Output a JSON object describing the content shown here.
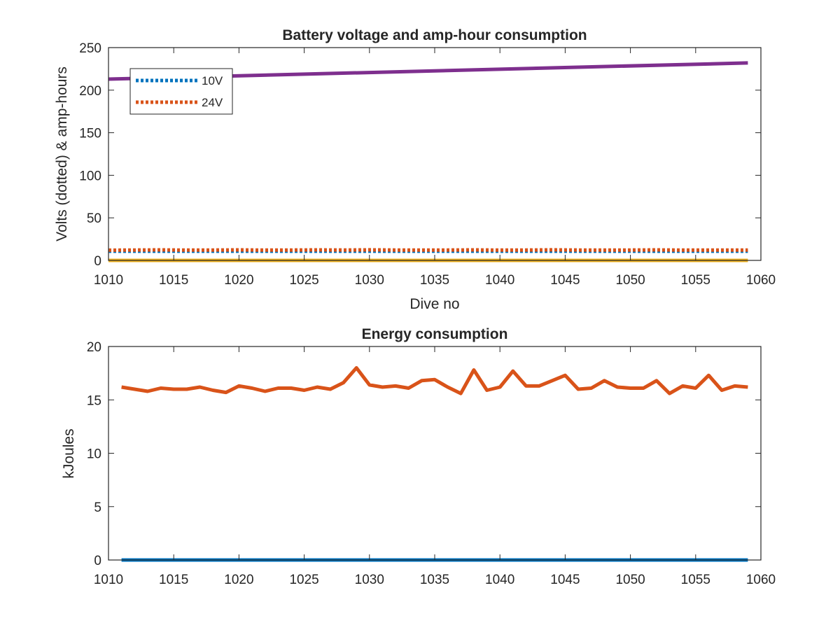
{
  "chart_data": [
    {
      "type": "line",
      "title": "Battery voltage and amp-hour consumption",
      "xlabel": "Dive no",
      "ylabel": "Volts (dotted) & amp-hours",
      "xlim": [
        1010,
        1060
      ],
      "ylim": [
        0,
        250
      ],
      "xticks": [
        1010,
        1015,
        1020,
        1025,
        1030,
        1035,
        1040,
        1045,
        1050,
        1055,
        1060
      ],
      "yticks": [
        0,
        50,
        100,
        150,
        200,
        250
      ],
      "grid": false,
      "legend": {
        "placement": "top-left",
        "entries": [
          "10V",
          "24V"
        ]
      },
      "series": [
        {
          "name": "10V",
          "style": "dotted",
          "color": "#0072BD",
          "x": [
            1010,
            1059
          ],
          "y": [
            10.8,
            10.8
          ]
        },
        {
          "name": "24V",
          "style": "dotted",
          "color": "#D95319",
          "x": [
            1010,
            1012,
            1014,
            1016,
            1018,
            1020,
            1022,
            1024,
            1026,
            1028,
            1030,
            1032,
            1034,
            1036,
            1038,
            1040,
            1042,
            1044,
            1046,
            1048,
            1050,
            1052,
            1054,
            1056,
            1059
          ],
          "y": [
            12,
            12.2,
            12.3,
            12.1,
            12.2,
            12.3,
            12.1,
            12.2,
            12.3,
            12.2,
            12.4,
            12.2,
            12.1,
            12.2,
            12.3,
            12.1,
            12.2,
            12.4,
            12.2,
            12.1,
            12.2,
            12.3,
            12.1,
            12.2,
            12.2
          ]
        },
        {
          "style": "solid",
          "color": "#EDB120",
          "x": [
            1010,
            1059
          ],
          "y": [
            0,
            0
          ]
        },
        {
          "style": "solid",
          "color": "#7E2F8E",
          "x": [
            1010,
            1059
          ],
          "y": [
            213,
            232
          ]
        }
      ]
    },
    {
      "type": "line",
      "title": "Energy consumption",
      "xlabel": "",
      "ylabel": "kJoules",
      "xlim": [
        1010,
        1060
      ],
      "ylim": [
        0,
        20
      ],
      "xticks": [
        1010,
        1015,
        1020,
        1025,
        1030,
        1035,
        1040,
        1045,
        1050,
        1055,
        1060
      ],
      "yticks": [
        0,
        5,
        10,
        15,
        20
      ],
      "grid": false,
      "series": [
        {
          "style": "solid",
          "color": "#0072BD",
          "x": [
            1011,
            1059
          ],
          "y": [
            0,
            0
          ]
        },
        {
          "style": "solid",
          "color": "#D95319",
          "x": [
            1011,
            1012,
            1013,
            1014,
            1015,
            1016,
            1017,
            1018,
            1019,
            1020,
            1021,
            1022,
            1023,
            1024,
            1025,
            1026,
            1027,
            1028,
            1029,
            1030,
            1031,
            1032,
            1033,
            1034,
            1035,
            1036,
            1037,
            1038,
            1039,
            1040,
            1041,
            1042,
            1043,
            1044,
            1045,
            1046,
            1047,
            1048,
            1049,
            1050,
            1051,
            1052,
            1053,
            1054,
            1055,
            1056,
            1057,
            1058,
            1059
          ],
          "y": [
            16.2,
            16.0,
            15.8,
            16.1,
            16.0,
            16.0,
            16.2,
            15.9,
            15.7,
            16.3,
            16.1,
            15.8,
            16.1,
            16.1,
            15.9,
            16.2,
            16.0,
            16.6,
            18.0,
            16.4,
            16.2,
            16.3,
            16.1,
            16.8,
            16.9,
            16.2,
            15.6,
            17.8,
            15.9,
            16.2,
            17.7,
            16.3,
            16.3,
            16.8,
            17.3,
            16.0,
            16.1,
            16.8,
            16.2,
            16.1,
            16.1,
            16.8,
            15.6,
            16.3,
            16.1,
            17.3,
            15.9,
            16.3,
            16.2
          ]
        }
      ]
    }
  ]
}
